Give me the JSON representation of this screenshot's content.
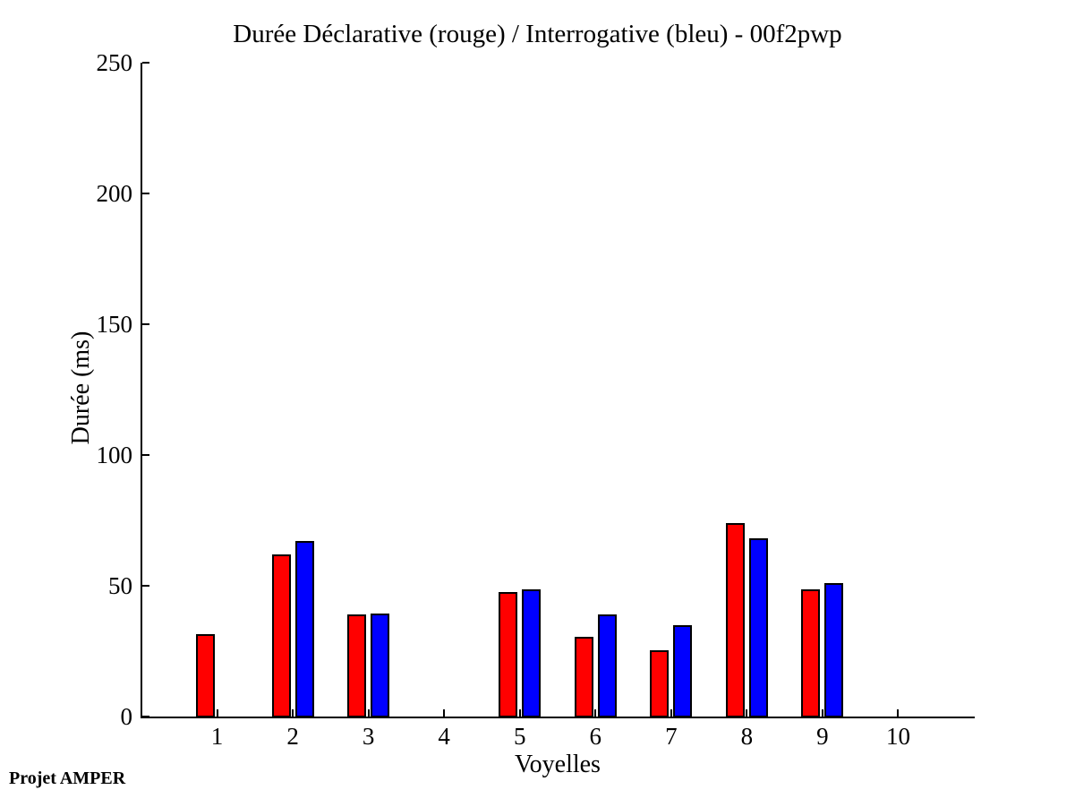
{
  "page": {
    "footer": "Projet AMPER"
  },
  "chart_data": {
    "type": "bar",
    "title": "Durée Déclarative (rouge) / Interrogative (bleu) - 00f2pwp",
    "xlabel": "Voyelles",
    "ylabel": "Durée (ms)",
    "categories": [
      "1",
      "2",
      "3",
      "4",
      "5",
      "6",
      "7",
      "8",
      "9",
      "10"
    ],
    "series": [
      {
        "name": "Déclarative",
        "color": "#ff0000",
        "values": [
          31.5,
          62,
          39,
          0,
          47.5,
          30.5,
          25.5,
          74,
          48.5,
          0
        ]
      },
      {
        "name": "Interrogative",
        "color": "#0000ff",
        "values": [
          0,
          67,
          39.5,
          0,
          48.5,
          39,
          35,
          68,
          51,
          0
        ]
      }
    ],
    "bar_edge_color": "#000000",
    "ylim": [
      0,
      250
    ],
    "yticks": [
      0,
      50,
      100,
      150,
      200,
      250
    ],
    "xlim": [
      0,
      11
    ],
    "grid": false,
    "legend": "none"
  }
}
